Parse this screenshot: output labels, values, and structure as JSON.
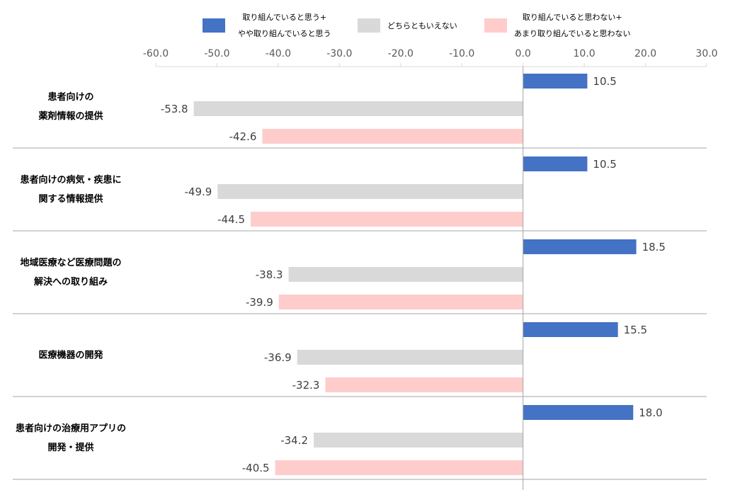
{
  "chart_data": {
    "type": "bar",
    "orientation": "horizontal",
    "categories": [
      [
        "患者向けの",
        "薬剤情報の提供"
      ],
      [
        "患者向けの病気・疾患に",
        "関する情報提供"
      ],
      [
        "地域医療など医療問題の",
        "解決への取り組み"
      ],
      [
        "医療機器の開発"
      ],
      [
        "患者向けの治療用アプリの",
        "開発・提供"
      ]
    ],
    "series": [
      {
        "name": [
          "取り組んでいると思う+",
          "やや取り組んでいると思う"
        ],
        "color": "#4472C4",
        "values": [
          10.5,
          10.5,
          18.5,
          15.5,
          18.0
        ]
      },
      {
        "name": [
          "どちらともいえない"
        ],
        "color": "#D9D9D9",
        "values": [
          -53.8,
          -49.9,
          -38.3,
          -36.9,
          -34.2
        ]
      },
      {
        "name": [
          "取り組んでいると思わない+",
          "あまり取り組んでいると思わない"
        ],
        "color": "#FFCCCC",
        "values": [
          -42.6,
          -44.5,
          -39.9,
          -32.3,
          -40.5
        ]
      }
    ],
    "xlim": [
      -60,
      30
    ],
    "xticks": [
      "-60.0",
      "-50.0",
      "-40.0",
      "-30.0",
      "-20.0",
      "-10.0",
      "0.0",
      "10.0",
      "20.0",
      "30.0"
    ],
    "legend": "top",
    "grid": false
  }
}
